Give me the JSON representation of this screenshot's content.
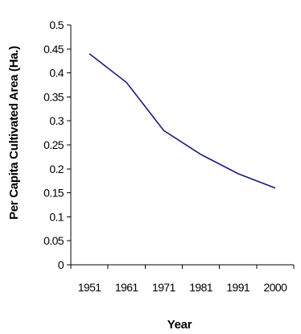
{
  "chart_data": {
    "type": "line",
    "title": "",
    "xlabel": "Year",
    "ylabel": "Per Capita Cultivated Area (Ha.)",
    "categories": [
      "1951",
      "1961",
      "1971",
      "1981",
      "1991",
      "2000"
    ],
    "yticks": [
      "0",
      "0.05",
      "0.1",
      "0.15",
      "0.2",
      "0.25",
      "0.3",
      "0.35",
      "0.4",
      "0.45",
      "0.5"
    ],
    "ylim": [
      0,
      0.5
    ],
    "grid": false,
    "legend": "none",
    "series": [
      {
        "values": [
          0.44,
          0.38,
          0.28,
          0.23,
          0.19,
          0.16
        ]
      }
    ],
    "colors": {
      "line": "#1a1a7a",
      "axis": "#000000"
    }
  }
}
